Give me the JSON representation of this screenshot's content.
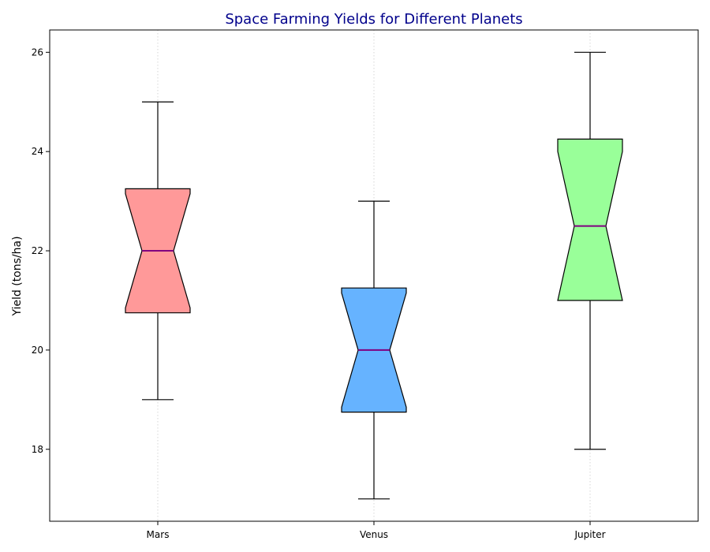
{
  "chart_data": {
    "type": "box",
    "title": "Space Farming Yields for Different Planets",
    "xlabel": "",
    "ylabel": "Yield (tons/ha)",
    "ylim": [
      16.55,
      26.45
    ],
    "yticks": [
      18,
      20,
      22,
      24,
      26
    ],
    "ytick_labels": [
      "18",
      "20",
      "22",
      "24",
      "26"
    ],
    "categories": [
      "Mars",
      "Venus",
      "Jupiter"
    ],
    "notched": true,
    "grid": "vertical dotted at categories",
    "series": [
      {
        "category": "Mars",
        "whisker_low": 19,
        "q1": 20.75,
        "notch_low": 20.85,
        "median": 22,
        "notch_high": 23.15,
        "q3": 23.25,
        "whisker_high": 25,
        "color": "#ff9999"
      },
      {
        "category": "Venus",
        "whisker_low": 17,
        "q1": 18.75,
        "notch_low": 18.85,
        "median": 20,
        "notch_high": 21.15,
        "q3": 21.25,
        "whisker_high": 23,
        "color": "#66b3ff"
      },
      {
        "category": "Jupiter",
        "whisker_low": 18,
        "q1": 21,
        "notch_low": 21.0,
        "median": 22.5,
        "notch_high": 24.0,
        "q3": 24.25,
        "whisker_high": 26,
        "color": "#99ff99"
      }
    ],
    "colors": {
      "title": "#00008b",
      "median": "#800080",
      "edge": "#000000",
      "grid": "#cccccc"
    }
  }
}
